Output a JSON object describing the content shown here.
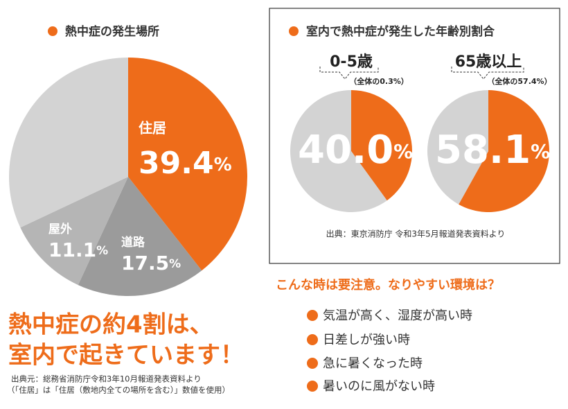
{
  "chart_data": [
    {
      "type": "pie",
      "title": "熱中症の発生場所",
      "categories": [
        "住居",
        "道路",
        "屋外",
        null
      ],
      "values": [
        39.4,
        17.5,
        11.1,
        32.0
      ],
      "colors": [
        "#ee6c1a",
        "#9b9b9b",
        "#b5b5b5",
        "#d3d3d3"
      ],
      "unit": "%"
    },
    {
      "type": "pie",
      "title": "0-5歳",
      "annotation": "（全体の0.3%）",
      "categories": [
        null,
        null
      ],
      "values": [
        40.0,
        60.0
      ],
      "value_labels": [
        "40.0",
        null
      ],
      "colors": [
        "#ee6c1a",
        "#d3d3d3"
      ],
      "unit": "%"
    },
    {
      "type": "pie",
      "title": "65歳以上",
      "annotation": "（全体の57.4%）",
      "categories": [
        null,
        null
      ],
      "values": [
        58.1,
        41.9
      ],
      "value_labels": [
        "58.1",
        null
      ],
      "colors": [
        "#ee6c1a",
        "#d3d3d3"
      ],
      "unit": "%"
    }
  ],
  "right_section": {
    "title": "室内で熱中症が発生した年齢別割合",
    "source": "出典：東京消防庁 令和3年5月報道発表資料より"
  },
  "headline": [
    "熱中症の約4割は、",
    "室内で起きています！"
  ],
  "left_source": [
    "出典元：総務省消防庁令和3年10月報道発表資料より",
    "（「住居」は「住居（敷地内全ての場所を含む）」数値を使用）"
  ],
  "tips": {
    "title": "こんな時は要注意。なりやすい環境は？",
    "items": [
      "気温が高く、湿度が高い時",
      "日差しが強い時",
      "急に暑くなった時",
      "暑いのに風がない時"
    ]
  }
}
